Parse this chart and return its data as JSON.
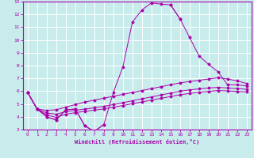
{
  "title": "",
  "xlabel": "Windchill (Refroidissement éolien,°C)",
  "ylabel": "",
  "bg_color": "#c8ecec",
  "line_color": "#aa00aa",
  "grid_color": "#ffffff",
  "xlim": [
    -0.5,
    23.5
  ],
  "ylim": [
    3,
    13
  ],
  "xticks": [
    0,
    1,
    2,
    3,
    4,
    5,
    6,
    7,
    8,
    9,
    10,
    11,
    12,
    13,
    14,
    15,
    16,
    17,
    18,
    19,
    20,
    21,
    22,
    23
  ],
  "yticks": [
    3,
    4,
    5,
    6,
    7,
    8,
    9,
    10,
    11,
    12,
    13
  ],
  "lines": [
    [
      5.9,
      4.6,
      4.0,
      3.75,
      4.55,
      4.6,
      3.3,
      2.85,
      3.4,
      5.9,
      7.9,
      11.4,
      12.35,
      12.9,
      12.8,
      12.75,
      11.65,
      10.2,
      8.75,
      8.1,
      7.5,
      6.5,
      6.5,
      6.4
    ],
    [
      5.9,
      4.6,
      4.0,
      3.75,
      4.55,
      4.6,
      3.3,
      2.85,
      3.4,
      null,
      null,
      null,
      null,
      null,
      null,
      null,
      null,
      null,
      null,
      null,
      null,
      null,
      null,
      null
    ],
    [
      null,
      null,
      null,
      null,
      null,
      null,
      null,
      null,
      null,
      null,
      null,
      null,
      null,
      null,
      null,
      12.75,
      11.65,
      null,
      null,
      null,
      null,
      null,
      null,
      null
    ],
    [
      5.9,
      4.6,
      4.5,
      4.55,
      4.75,
      4.95,
      5.15,
      5.3,
      5.45,
      5.6,
      5.75,
      5.9,
      6.05,
      6.2,
      6.35,
      6.5,
      6.65,
      6.75,
      6.85,
      6.95,
      7.05,
      6.95,
      6.8,
      6.6
    ],
    [
      5.9,
      4.6,
      4.3,
      4.2,
      4.4,
      4.5,
      4.6,
      4.7,
      4.82,
      4.95,
      5.1,
      5.25,
      5.4,
      5.55,
      5.7,
      5.85,
      6.0,
      6.1,
      6.18,
      6.25,
      6.3,
      6.25,
      6.2,
      6.15
    ],
    [
      5.9,
      4.6,
      4.15,
      3.95,
      4.2,
      4.32,
      4.42,
      4.52,
      4.62,
      4.75,
      4.88,
      5.02,
      5.16,
      5.3,
      5.44,
      5.58,
      5.72,
      5.82,
      5.92,
      5.98,
      6.05,
      6.02,
      5.98,
      5.95
    ]
  ]
}
